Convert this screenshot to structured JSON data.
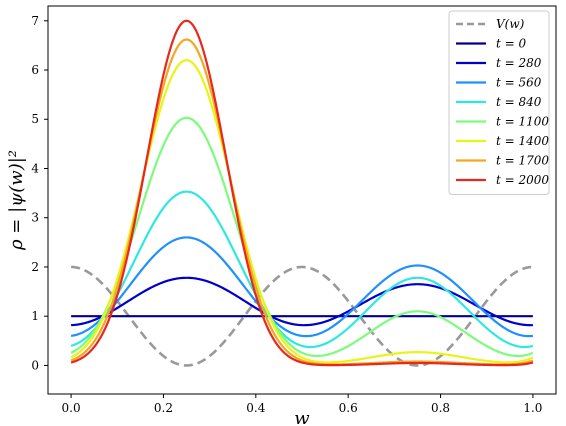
{
  "chart_data": {
    "type": "line",
    "xlabel": "w",
    "ylabel": "ρ = |ψ(w)|²",
    "xlim": [
      -0.05,
      1.05
    ],
    "ylim": [
      -0.58,
      7.3
    ],
    "xticks": [
      "0.0",
      "0.2",
      "0.4",
      "0.6",
      "0.8",
      "1.0"
    ],
    "xtick_values": [
      0.0,
      0.2,
      0.4,
      0.6,
      0.8,
      1.0
    ],
    "yticks": [
      "0",
      "1",
      "2",
      "3",
      "4",
      "5",
      "6",
      "7"
    ],
    "ytick_values": [
      0,
      1,
      2,
      3,
      4,
      5,
      6,
      7
    ],
    "grid": false,
    "legend_position": "top-right",
    "potential": {
      "name": "V(w)",
      "color": "#999999",
      "style": "dashed",
      "formula": "1 + cos(4πw)"
    },
    "series": [
      {
        "name": "t = 0",
        "color": "#00008b",
        "peak1": 1.0,
        "peak2": 1.0,
        "min": 1.0
      },
      {
        "name": "t = 280",
        "color": "#0000cd",
        "peak1": 1.78,
        "peak2": 1.65,
        "min": 0.42
      },
      {
        "name": "t = 560",
        "color": "#1e90ff",
        "peak1": 2.6,
        "peak2": 2.03,
        "min": 0.2
      },
      {
        "name": "t = 840",
        "color": "#2ee8e0",
        "peak1": 3.53,
        "peak2": 1.78,
        "min": 0.1
      },
      {
        "name": "t = 1100",
        "color": "#7cfc7c",
        "peak1": 5.03,
        "peak2": 1.1,
        "min": 0.04
      },
      {
        "name": "t = 1400",
        "color": "#e6f516",
        "peak1": 6.2,
        "peak2": 0.27,
        "min": 0.02
      },
      {
        "name": "t = 1700",
        "color": "#f5a623",
        "peak1": 6.62,
        "peak2": 0.08,
        "min": 0.01
      },
      {
        "name": "t = 2000",
        "color": "#e8271d",
        "peak1": 7.0,
        "peak2": 0.05,
        "min": 0.0
      }
    ]
  }
}
